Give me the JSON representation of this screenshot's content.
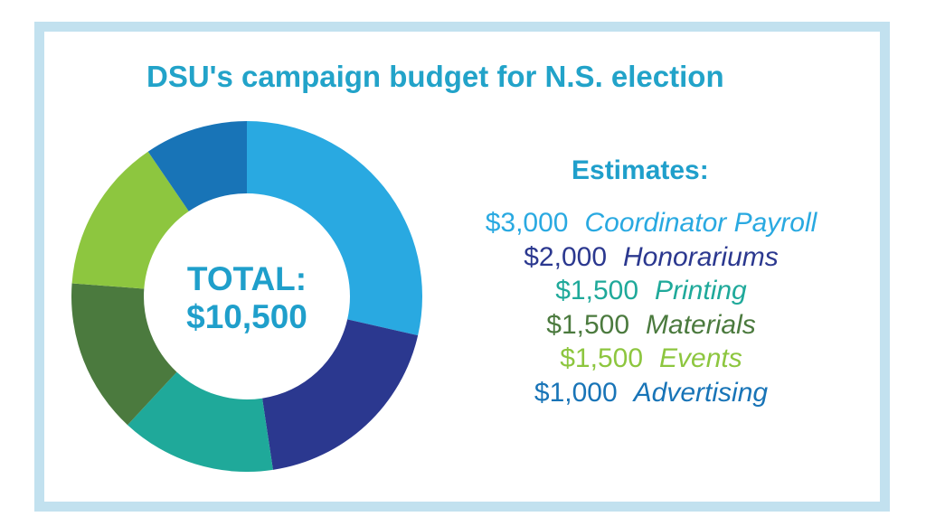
{
  "title": "DSU's campaign budget for N.S. election",
  "center": {
    "line1": "TOTAL:",
    "line2": "$10,500"
  },
  "estimates_heading": "Estimates:",
  "colors": {
    "title": "#22a3c9",
    "center": "#1f9fcb",
    "heading": "#1f9fcb",
    "frame": "#c2e1ef"
  },
  "chart_data": {
    "type": "pie",
    "subtype": "donut",
    "title": "DSU's campaign budget for N.S. election",
    "total": 10500,
    "slices": [
      {
        "label": "Coordinator Payroll",
        "amount_text": "$3,000",
        "value": 3000,
        "color": "#29a9e1"
      },
      {
        "label": "Honorariums",
        "amount_text": "$2,000",
        "value": 2000,
        "color": "#2b388f"
      },
      {
        "label": "Printing",
        "amount_text": "$1,500",
        "value": 1500,
        "color": "#1fa99a"
      },
      {
        "label": "Materials",
        "amount_text": "$1,500",
        "value": 1500,
        "color": "#4b7a3e"
      },
      {
        "label": "Events",
        "amount_text": "$1,500",
        "value": 1500,
        "color": "#8dc63f"
      },
      {
        "label": "Advertising",
        "amount_text": "$1,000",
        "value": 1000,
        "color": "#1874b7"
      }
    ]
  }
}
